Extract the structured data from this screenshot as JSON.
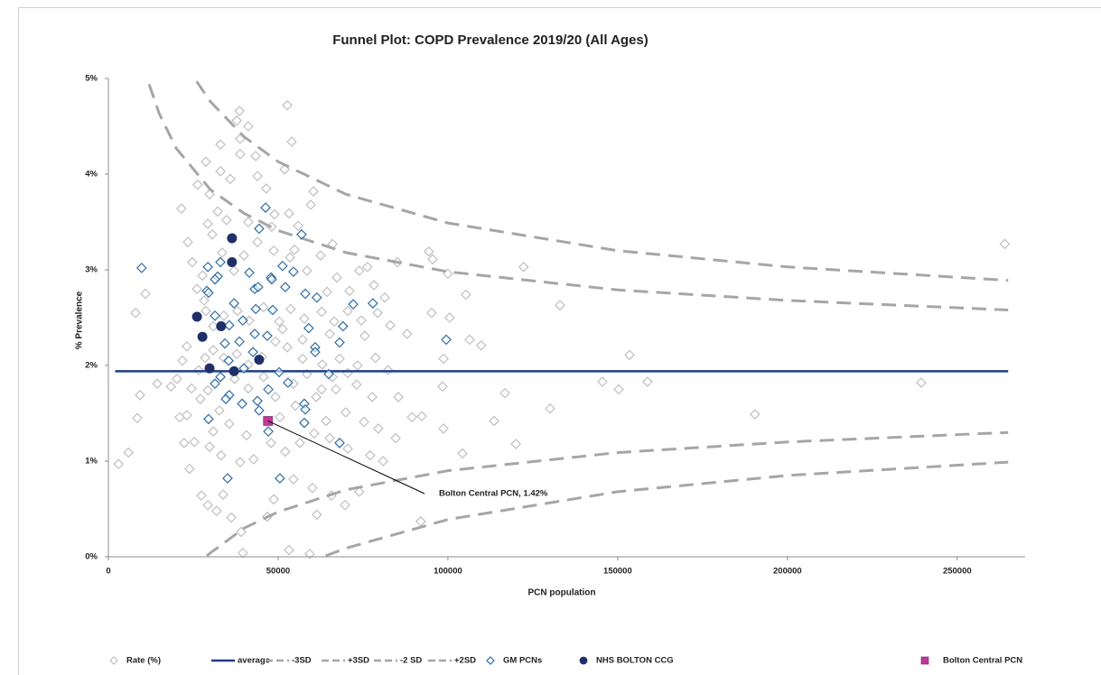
{
  "chart_data": {
    "type": "scatter",
    "title": "Funnel Plot: COPD Prevalence 2019/20 (All Ages)",
    "xlabel": "PCN population",
    "ylabel": "% Prevalence",
    "xlim": [
      0,
      270000
    ],
    "ylim": [
      0,
      5
    ],
    "xticks": [
      0,
      50000,
      100000,
      150000,
      200000,
      250000
    ],
    "yticks": [
      {
        "value": 0,
        "label": "0%"
      },
      {
        "value": 1,
        "label": "1%"
      },
      {
        "value": 2,
        "label": "2%"
      },
      {
        "value": 3,
        "label": "3%"
      },
      {
        "value": 4,
        "label": "4%"
      },
      {
        "value": 5,
        "label": "5%"
      }
    ],
    "legend": "bottom",
    "annotation": {
      "text": "Bolton Central PCN, 1.42%"
    },
    "series": [
      {
        "name": "Rate (%)",
        "mode": "markers",
        "marker": "diamond-open",
        "color": "#bfbfbf",
        "x": [
          3000,
          5900,
          8500,
          9300,
          8000,
          10900,
          14400,
          21500,
          38600,
          52700,
          54000,
          264000,
          239400,
          190400,
          153500,
          158800,
          145500,
          150300,
          130100,
          133000,
          122300,
          116800,
          120000,
          113600,
          106400,
          109800,
          105300,
          100500,
          95200,
          94400,
          95500,
          100000,
          92300,
          98700,
          98700,
          98400,
          92000,
          104300,
          85400,
          82400,
          88000,
          85100,
          76300,
          60400,
          53500,
          51900,
          59600,
          55900,
          38800,
          37800,
          33000,
          28700,
          29800,
          32200,
          29300,
          43400,
          38800,
          46500,
          53200,
          48100,
          23400,
          26100,
          24700,
          23100,
          21800,
          20200,
          18400,
          23100,
          21000,
          22300,
          25300,
          23900,
          27400,
          29300,
          31900,
          33800,
          36200,
          39100,
          39600,
          46800,
          48700,
          53200,
          59300,
          61400,
          54500,
          60100,
          65700,
          69700,
          73900,
          80900,
          77100,
          70500,
          65200,
          60600,
          56400,
          52100,
          42800,
          38800,
          33200,
          29800,
          30900,
          35600,
          40700,
          47900,
          50500,
          55100,
          61200,
          67000,
          73100,
          77700,
          75300,
          69900,
          64100,
          79500,
          84600,
          89400,
          78700,
          73400,
          68100,
          63000,
          57200,
          52700,
          49200,
          45200,
          41200,
          37800,
          34000,
          30900,
          28500,
          26600,
          24500,
          27100,
          29300,
          32700,
          37200,
          41200,
          45700,
          49200,
          54500,
          58500,
          62800,
          66000,
          70500,
          30900,
          28700,
          28200,
          34000,
          38000,
          41500,
          45700,
          50300,
          53700,
          57700,
          62800,
          66500,
          70500,
          74500,
          79300,
          83000,
          75500,
          65200,
          57200,
          51300,
          27700,
          33500,
          37000,
          39900,
          43900,
          48700,
          54800,
          58500,
          62500,
          66000,
          67300,
          71000,
          73900,
          78200,
          81400,
          64400,
          30600,
          34800,
          41200,
          48900,
          26300,
          35900,
          43900,
          41200,
          33000
        ],
        "values": [
          0.97,
          1.09,
          1.45,
          1.69,
          2.55,
          2.75,
          1.81,
          3.64,
          4.66,
          4.72,
          4.34,
          3.27,
          1.82,
          1.49,
          2.11,
          1.83,
          1.83,
          1.75,
          1.55,
          2.63,
          3.03,
          1.71,
          1.18,
          1.42,
          2.27,
          2.21,
          2.74,
          2.5,
          2.55,
          3.19,
          3.11,
          2.96,
          1.47,
          1.34,
          2.07,
          1.78,
          0.37,
          1.08,
          1.67,
          1.95,
          2.33,
          3.08,
          3.03,
          3.82,
          3.13,
          4.05,
          3.68,
          3.46,
          4.37,
          4.56,
          4.03,
          4.13,
          3.79,
          3.61,
          3.48,
          4.19,
          4.21,
          3.85,
          3.59,
          3.45,
          3.29,
          2.8,
          3.08,
          2.2,
          2.05,
          1.86,
          1.78,
          1.48,
          1.46,
          1.19,
          1.2,
          0.92,
          0.64,
          0.54,
          0.48,
          0.65,
          0.41,
          0.26,
          0.04,
          0.42,
          0.6,
          0.07,
          0.03,
          0.44,
          0.81,
          0.72,
          0.64,
          0.54,
          0.68,
          1.0,
          1.06,
          1.13,
          1.24,
          1.29,
          1.19,
          1.1,
          1.02,
          0.99,
          1.06,
          1.15,
          1.31,
          1.39,
          1.27,
          1.19,
          1.46,
          1.58,
          1.67,
          1.75,
          1.8,
          1.67,
          1.41,
          1.51,
          1.42,
          1.34,
          1.24,
          1.46,
          2.08,
          2.0,
          2.07,
          2.01,
          2.07,
          2.19,
          2.25,
          2.09,
          2.01,
          2.12,
          2.08,
          2.16,
          2.08,
          1.95,
          1.76,
          1.65,
          1.74,
          1.53,
          1.86,
          1.76,
          1.88,
          1.67,
          1.81,
          1.91,
          1.75,
          1.88,
          1.92,
          2.41,
          2.57,
          2.68,
          2.52,
          2.57,
          2.47,
          2.61,
          2.46,
          2.59,
          2.49,
          2.56,
          2.46,
          2.57,
          2.47,
          2.55,
          2.42,
          2.31,
          2.33,
          2.27,
          2.38,
          2.94,
          3.18,
          2.99,
          3.15,
          3.29,
          3.2,
          3.21,
          2.99,
          3.15,
          3.27,
          2.92,
          2.78,
          2.99,
          2.84,
          2.71,
          2.77,
          3.37,
          3.52,
          3.5,
          3.58,
          3.89,
          3.95,
          3.98,
          4.5,
          4.31
        ]
      },
      {
        "name": "average",
        "mode": "line",
        "dash": false,
        "color": "#1f3c88",
        "x": [
          2000,
          265000
        ],
        "values": [
          1.94,
          1.94
        ]
      },
      {
        "name": "-3SD",
        "mode": "line",
        "dash": true,
        "color": "#a6a6a6",
        "x": [
          64000,
          70000,
          100000,
          150000,
          200000,
          265000
        ],
        "values": [
          0.01,
          0.09,
          0.39,
          0.68,
          0.85,
          0.99
        ]
      },
      {
        "name": "+3SD",
        "mode": "line",
        "dash": true,
        "color": "#a6a6a6",
        "x": [
          26000,
          30000,
          40000,
          50000,
          70000,
          100000,
          150000,
          200000,
          265000
        ],
        "values": [
          4.97,
          4.76,
          4.39,
          4.13,
          3.79,
          3.49,
          3.2,
          3.03,
          2.89
        ]
      },
      {
        "name": "-2 SD",
        "mode": "line",
        "dash": true,
        "color": "#a6a6a6",
        "x": [
          29000,
          30000,
          40000,
          50000,
          70000,
          100000,
          150000,
          200000,
          265000
        ],
        "values": [
          0.01,
          0.04,
          0.3,
          0.47,
          0.7,
          0.9,
          1.09,
          1.2,
          1.3
        ]
      },
      {
        "name": "+2SD",
        "mode": "line",
        "dash": true,
        "color": "#a6a6a6",
        "x": [
          12000,
          15000,
          20000,
          30000,
          40000,
          50000,
          70000,
          100000,
          150000,
          200000,
          265000
        ],
        "values": [
          4.94,
          4.63,
          4.27,
          3.84,
          3.59,
          3.41,
          3.18,
          2.98,
          2.79,
          2.68,
          2.58
        ]
      },
      {
        "name": "GM PCNs",
        "mode": "markers",
        "marker": "diamond-open",
        "color": "#2e6da4",
        "x": [
          9800,
          29000,
          29500,
          33000,
          32200,
          31400,
          37000,
          39600,
          41500,
          43100,
          44100,
          44400,
          46300,
          51300,
          47900,
          48100,
          52100,
          56900,
          54500,
          58000,
          61400,
          59000,
          48400,
          43400,
          35600,
          38600,
          43100,
          46800,
          35400,
          33000,
          31400,
          35600,
          34600,
          29500,
          39400,
          43900,
          44400,
          47100,
          52900,
          50300,
          57700,
          58000,
          57700,
          47100,
          68100,
          35100,
          50500,
          34300,
          42600,
          68100,
          69100,
          72100,
          77900,
          99500,
          60900,
          60900,
          64900,
          39900,
          29300,
          31400
        ],
        "values": [
          3.02,
          2.78,
          2.76,
          3.08,
          2.93,
          2.9,
          2.65,
          2.47,
          2.97,
          2.8,
          2.82,
          3.43,
          3.65,
          3.04,
          2.92,
          2.9,
          2.82,
          3.37,
          2.98,
          2.75,
          2.71,
          2.39,
          2.58,
          2.59,
          2.42,
          2.25,
          2.33,
          2.31,
          2.05,
          1.88,
          1.81,
          1.69,
          1.65,
          1.44,
          1.6,
          1.63,
          1.53,
          1.75,
          1.82,
          1.93,
          1.6,
          1.54,
          1.4,
          1.31,
          1.19,
          0.82,
          0.82,
          2.23,
          2.14,
          2.24,
          2.41,
          2.64,
          2.65,
          2.27,
          2.19,
          2.14,
          1.91,
          1.97,
          3.03,
          2.52
        ]
      },
      {
        "name": "NHS BOLTON CCG",
        "mode": "markers",
        "marker": "circle",
        "color": "#1f3068",
        "x": [
          36400,
          36400,
          26100,
          33200,
          27700,
          29800,
          37000,
          44400
        ],
        "values": [
          3.33,
          3.08,
          2.51,
          2.41,
          2.3,
          1.97,
          1.94,
          2.06
        ]
      },
      {
        "name": "Bolton Central PCN",
        "mode": "markers",
        "marker": "square",
        "color": "#c0389a",
        "x": [
          47000
        ],
        "values": [
          1.42
        ]
      }
    ]
  }
}
